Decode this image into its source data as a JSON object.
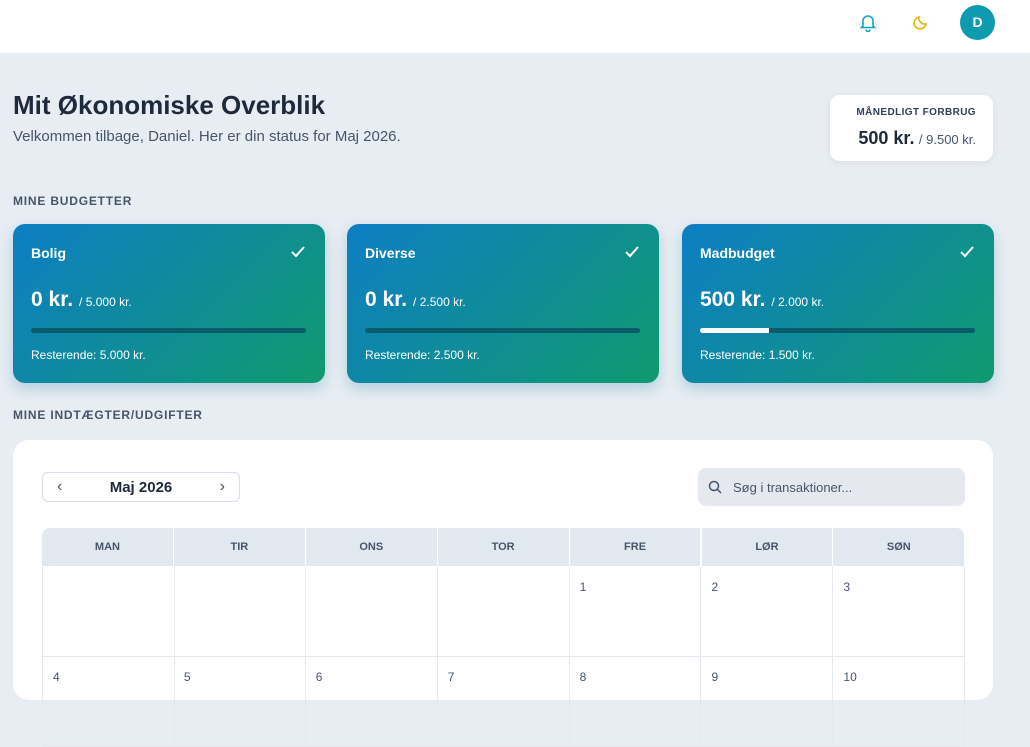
{
  "header": {
    "avatar": "D"
  },
  "page": {
    "title": "Mit Økonomiske Overblik",
    "subtitle": "Velkommen tilbage, Daniel. Her er din status for Maj 2026."
  },
  "summary": {
    "label": "MÅNEDLIGT FORBRUG",
    "amount": "500 kr.",
    "total": "/ 9.500 kr."
  },
  "budgets": {
    "heading": "MINE BUDGETTER",
    "cards": [
      {
        "name": "Bolig",
        "amount": "0 kr.",
        "total": "/ 5.000 kr.",
        "progress": 0,
        "remaining": "Resterende: 5.000 kr."
      },
      {
        "name": "Diverse",
        "amount": "0 kr.",
        "total": "/ 2.500 kr.",
        "progress": 0,
        "remaining": "Resterende: 2.500 kr."
      },
      {
        "name": "Madbudget",
        "amount": "500 kr.",
        "total": "/ 2.000 kr.",
        "progress": 25,
        "remaining": "Resterende: 1.500 kr."
      }
    ]
  },
  "transactions": {
    "heading": "MINE INDTÆGTER/UDGIFTER",
    "month": "Maj 2026",
    "search_placeholder": "Søg i transaktioner...",
    "weekdays": [
      "MAN",
      "TIR",
      "ONS",
      "TOR",
      "FRE",
      "LØR",
      "SØN"
    ],
    "weeks": [
      [
        null,
        null,
        null,
        null,
        1,
        2,
        3
      ],
      [
        4,
        5,
        6,
        7,
        8,
        9,
        10
      ]
    ]
  }
}
